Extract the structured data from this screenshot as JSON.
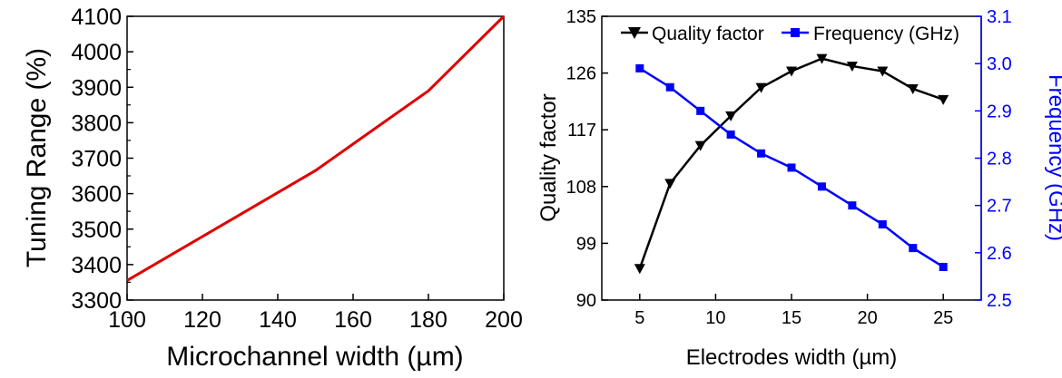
{
  "chart_data": [
    {
      "type": "line",
      "xlabel": "Microchannel width (µm)",
      "ylabel": "Tuning Range (%)",
      "xlim": [
        100,
        200
      ],
      "ylim": [
        3300,
        4100
      ],
      "xticks": [
        "100",
        "120",
        "140",
        "160",
        "180",
        "200"
      ],
      "yticks": [
        "3300",
        "3400",
        "3500",
        "3600",
        "3700",
        "3800",
        "3900",
        "4000",
        "4100"
      ],
      "series": [
        {
          "color": "#e00000",
          "x": [
            100,
            150,
            180,
            200
          ],
          "y": [
            3355,
            3665,
            3890,
            4100
          ]
        }
      ]
    },
    {
      "type": "line",
      "xlabel": "Electrodes width (µm)",
      "ylabel": "Quality factor",
      "y2label": "Frequency (GHz)",
      "xlim": [
        2.5,
        27.5
      ],
      "ylim": [
        90,
        135
      ],
      "y2lim": [
        2.5,
        3.1
      ],
      "xticks": [
        "5",
        "10",
        "15",
        "20",
        "25"
      ],
      "yticks": [
        "90",
        "99",
        "108",
        "117",
        "126",
        "135"
      ],
      "y2ticks": [
        "2.5",
        "2.6",
        "2.7",
        "2.8",
        "2.9",
        "3.0",
        "3.1"
      ],
      "legend_position": "top",
      "series": [
        {
          "name": "Quality factor",
          "axis": "left",
          "marker": "triangle-down",
          "color": "#000000",
          "x": [
            5,
            7,
            9,
            11,
            13,
            15,
            17,
            19,
            21,
            23,
            25
          ],
          "y": [
            95,
            108.5,
            114.5,
            119.2,
            123.7,
            126.3,
            128.3,
            127.1,
            126.3,
            123.5,
            121.8
          ]
        },
        {
          "name": "Frequency (GHz)",
          "axis": "right",
          "marker": "square",
          "color": "#0000ff",
          "x": [
            5,
            7,
            9,
            11,
            13,
            15,
            17,
            19,
            21,
            23,
            25
          ],
          "y": [
            2.99,
            2.95,
            2.9,
            2.85,
            2.81,
            2.78,
            2.74,
            2.7,
            2.66,
            2.61,
            2.57
          ]
        }
      ]
    }
  ]
}
